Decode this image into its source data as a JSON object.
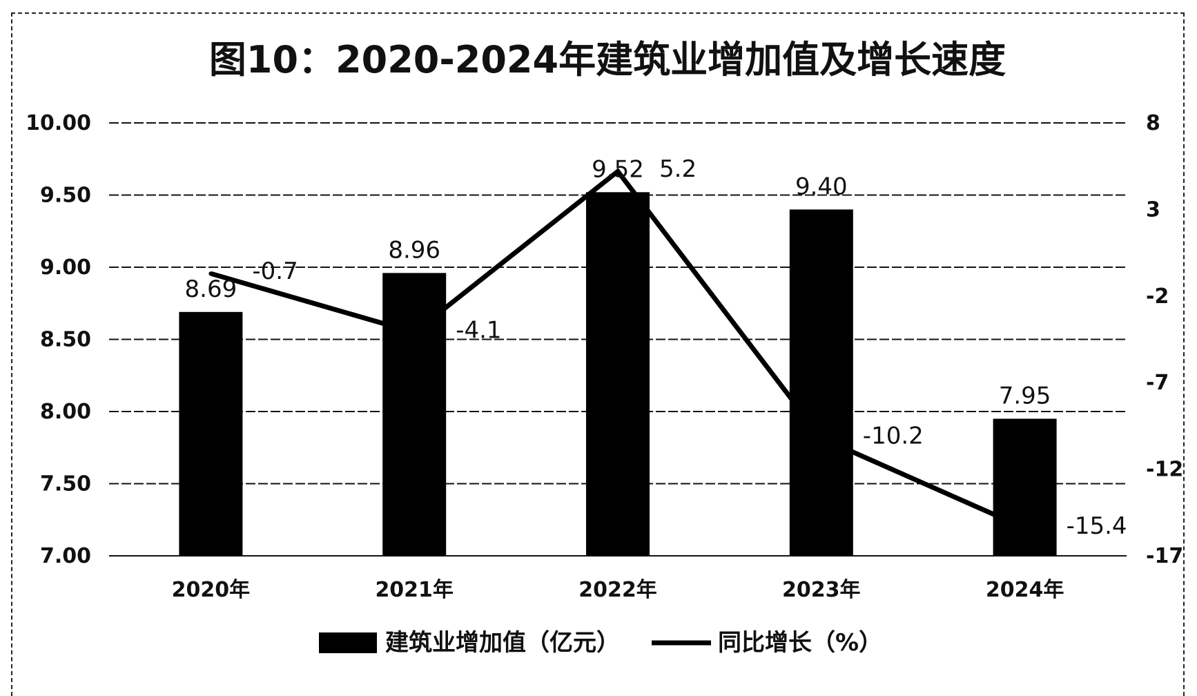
{
  "chart_data": {
    "type": "bar",
    "title": "图10：2020-2024年建筑业增加值及增长速度",
    "categories": [
      "2020年",
      "2021年",
      "2022年",
      "2023年",
      "2024年"
    ],
    "series": [
      {
        "name": "建筑业增加值（亿元）",
        "type": "bar",
        "axis": "left",
        "values": [
          8.69,
          8.96,
          9.52,
          9.4,
          7.95
        ],
        "labels": [
          "8.69",
          "8.96",
          "9.52",
          "9.40",
          "7.95"
        ]
      },
      {
        "name": "同比增长（%）",
        "type": "line",
        "axis": "right",
        "values": [
          -0.7,
          -4.1,
          5.2,
          -10.2,
          -15.4
        ],
        "labels": [
          "-0.7",
          "-4.1",
          "5.2",
          "-10.2",
          "-15.4"
        ]
      }
    ],
    "y_left": {
      "min": 7.0,
      "max": 10.0,
      "ticks": [
        "7.00",
        "7.50",
        "8.00",
        "8.50",
        "9.00",
        "9.50",
        "10.00"
      ]
    },
    "y_right": {
      "min": -17,
      "max": 8,
      "ticks": [
        "-17",
        "-12",
        "-7",
        "-2",
        "3",
        "8"
      ]
    },
    "grid": true,
    "legend_position": "bottom",
    "colors": {
      "bar": "#000000",
      "line": "#000000",
      "grid": "#111111"
    }
  }
}
